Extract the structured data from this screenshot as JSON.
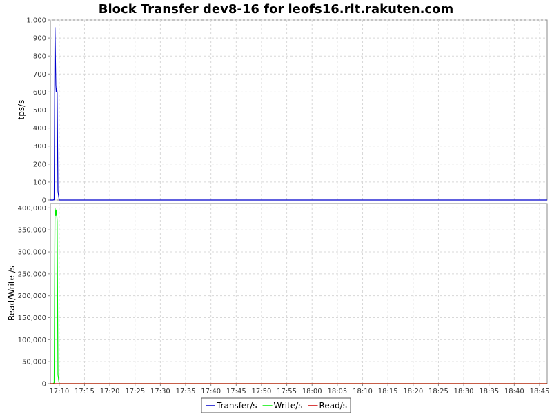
{
  "chart_data": {
    "type": "line",
    "title": "Block Transfer dev8-16 for leofs16.rit.rakuten.com",
    "x_time_ticks": [
      "17:10",
      "17:15",
      "17:20",
      "17:25",
      "17:30",
      "17:35",
      "17:40",
      "17:45",
      "17:50",
      "17:55",
      "18:00",
      "18:05",
      "18:10",
      "18:15",
      "18:20",
      "18:25",
      "18:30",
      "18:35",
      "18:40",
      "18:45"
    ],
    "xlim": [
      "17:08:15",
      "18:46:30"
    ],
    "panels": [
      {
        "ylabel": "tps/s",
        "ylim": [
          0,
          1000
        ],
        "yticks": [
          "0",
          "100",
          "200",
          "300",
          "400",
          "500",
          "600",
          "700",
          "800",
          "900",
          "1,000"
        ],
        "ytick_values": [
          0,
          100,
          200,
          300,
          400,
          500,
          600,
          700,
          800,
          900,
          1000
        ],
        "series": [
          {
            "name": "Transfer/s",
            "color": "#0000cc",
            "points": [
              [
                "17:08:15",
                0
              ],
              [
                "17:08:45",
                0
              ],
              [
                "17:09:00",
                2
              ],
              [
                "17:09:10",
                960
              ],
              [
                "17:09:20",
                640
              ],
              [
                "17:09:25",
                600
              ],
              [
                "17:09:30",
                620
              ],
              [
                "17:09:35",
                595
              ],
              [
                "17:09:45",
                50
              ],
              [
                "17:10:00",
                0
              ],
              [
                "18:46:30",
                0
              ]
            ]
          }
        ]
      },
      {
        "ylabel": "Read/Write /s",
        "ylim": [
          0,
          410000
        ],
        "yticks": [
          "0",
          "50,000",
          "100,000",
          "150,000",
          "200,000",
          "250,000",
          "300,000",
          "350,000",
          "400,000"
        ],
        "ytick_values": [
          0,
          50000,
          100000,
          150000,
          200000,
          250000,
          300000,
          350000,
          400000
        ],
        "series": [
          {
            "name": "Write/s",
            "color": "#00ee00",
            "points": [
              [
                "17:08:15",
                0
              ],
              [
                "17:08:45",
                0
              ],
              [
                "17:09:00",
                2000
              ],
              [
                "17:09:10",
                400000
              ],
              [
                "17:09:20",
                382000
              ],
              [
                "17:09:25",
                396000
              ],
              [
                "17:09:30",
                386000
              ],
              [
                "17:09:35",
                370000
              ],
              [
                "17:09:45",
                20000
              ],
              [
                "17:10:00",
                0
              ],
              [
                "18:46:30",
                0
              ]
            ]
          },
          {
            "name": "Read/s",
            "color": "#cc0000",
            "points": [
              [
                "17:08:15",
                0
              ],
              [
                "18:46:30",
                0
              ]
            ]
          }
        ]
      }
    ],
    "legend": {
      "placement": "bottom-center",
      "entries": [
        {
          "name": "Transfer/s",
          "color": "#0000cc"
        },
        {
          "name": "Write/s",
          "color": "#00ee00"
        },
        {
          "name": "Read/s",
          "color": "#cc0000"
        }
      ]
    },
    "grid": true
  }
}
